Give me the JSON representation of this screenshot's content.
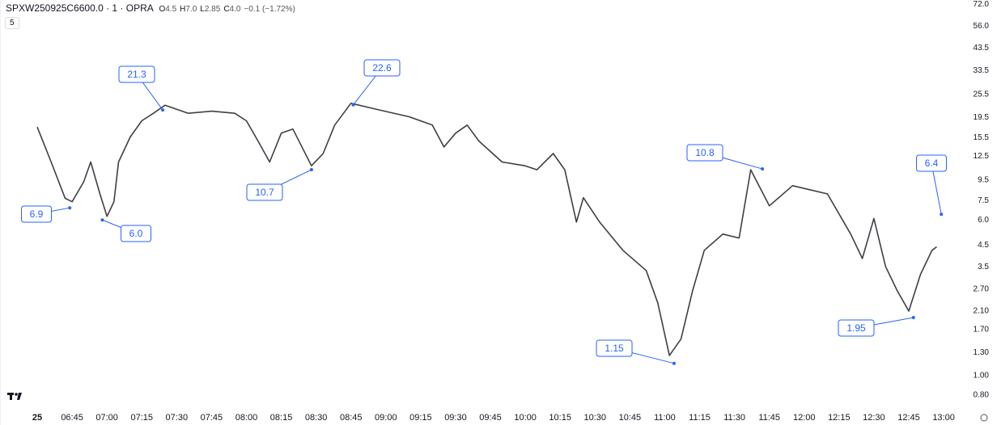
{
  "header": {
    "symbol": "SPXW250925C6600.0 · 1 · OPRA",
    "ohlc": [
      {
        "key": "O",
        "value": "4.5"
      },
      {
        "key": "H",
        "value": "7.0"
      },
      {
        "key": "L",
        "value": "2.85"
      },
      {
        "key": "C",
        "value": "4.0"
      }
    ],
    "change": "−0.1 (−1.72%)",
    "interval_button": "5"
  },
  "chart_data": {
    "type": "line",
    "log_scale": true,
    "ylim": [
      0.72,
      75.6
    ],
    "yticks": [
      {
        "value": 72,
        "label": "72.0"
      },
      {
        "value": 56,
        "label": "56.0"
      },
      {
        "value": 43.5,
        "label": "43.5"
      },
      {
        "value": 33.5,
        "label": "33.5"
      },
      {
        "value": 25.5,
        "label": "25.5"
      },
      {
        "value": 19.5,
        "label": "19.5"
      },
      {
        "value": 15.5,
        "label": "15.5"
      },
      {
        "value": 12.5,
        "label": "12.5"
      },
      {
        "value": 9.5,
        "label": "9.5"
      },
      {
        "value": 7.5,
        "label": "7.5"
      },
      {
        "value": 6,
        "label": "6.0"
      },
      {
        "value": 4.5,
        "label": "4.5"
      },
      {
        "value": 3.5,
        "label": "3.5"
      },
      {
        "value": 2.7,
        "label": "2.70"
      },
      {
        "value": 2.1,
        "label": "2.10"
      },
      {
        "value": 1.7,
        "label": "1.70"
      },
      {
        "value": 1.3,
        "label": "1.30"
      },
      {
        "value": 1,
        "label": "1.00"
      },
      {
        "value": 0.8,
        "label": "0.80"
      }
    ],
    "categories": [
      "25",
      "06:45",
      "07:00",
      "07:15",
      "07:30",
      "07:45",
      "08:00",
      "08:15",
      "08:30",
      "08:45",
      "09:00",
      "09:15",
      "09:30",
      "09:45",
      "10:00",
      "10:15",
      "10:30",
      "10:45",
      "11:00",
      "11:15",
      "11:30",
      "11:45",
      "12:00",
      "12:15",
      "12:30",
      "12:45",
      "13:00"
    ],
    "series": [
      {
        "color": "#3e3f47",
        "x": [
          "06:30",
          "06:36",
          "06:42",
          "06:45",
          "06:50",
          "06:53",
          "06:57",
          "07:00",
          "07:03",
          "07:05",
          "07:10",
          "07:15",
          "07:20",
          "07:25",
          "07:35",
          "07:45",
          "07:55",
          "08:00",
          "08:05",
          "08:10",
          "08:15",
          "08:20",
          "08:28",
          "08:33",
          "08:38",
          "08:45",
          "08:55",
          "09:10",
          "09:20",
          "09:25",
          "09:30",
          "09:35",
          "09:40",
          "09:50",
          "10:00",
          "10:05",
          "10:12",
          "10:17",
          "10:22",
          "10:25",
          "10:32",
          "10:42",
          "10:52",
          "10:57",
          "11:02",
          "11:07",
          "11:12",
          "11:17",
          "11:25",
          "11:32",
          "11:37",
          "11:45",
          "11:55",
          "12:10",
          "12:20",
          "12:25",
          "12:30",
          "12:35",
          "12:40",
          "12:45",
          "12:50",
          "12:55",
          "12:57"
        ],
        "values": [
          17.5,
          11.7,
          7.7,
          7.4,
          9.3,
          11.7,
          8.1,
          6.25,
          7.4,
          11.7,
          15.6,
          18.8,
          20.5,
          22.5,
          20.5,
          21,
          20.5,
          18.8,
          14.9,
          11.7,
          16.3,
          17.1,
          11.2,
          12.9,
          17.9,
          23,
          21.6,
          19.7,
          17.9,
          13.9,
          16.3,
          17.9,
          14.9,
          11.7,
          11.2,
          10.7,
          12.9,
          10.7,
          5.85,
          7.75,
          5.85,
          4.23,
          3.35,
          2.31,
          1.26,
          1.52,
          2.66,
          4.23,
          5.1,
          4.87,
          10.7,
          7.06,
          8.9,
          8.1,
          5.1,
          3.85,
          6.1,
          3.51,
          2.66,
          2.1,
          3.2,
          4.23,
          4.4
        ]
      }
    ],
    "annotations": [
      {
        "x": "06:44",
        "value": 6.9,
        "label": "6.9"
      },
      {
        "x": "06:58",
        "value": 6,
        "label": "6.0"
      },
      {
        "x": "07:24",
        "value": 21.3,
        "label": "21.3"
      },
      {
        "x": "08:28",
        "value": 10.7,
        "label": "10.7"
      },
      {
        "x": "08:46",
        "value": 22.6,
        "label": "22.6"
      },
      {
        "x": "11:04",
        "value": 1.15,
        "label": "1.15"
      },
      {
        "x": "11:42",
        "value": 10.8,
        "label": "10.8"
      },
      {
        "x": "12:47",
        "value": 1.95,
        "label": "1.95"
      },
      {
        "x": "12:59",
        "value": 6.4,
        "label": "6.4"
      }
    ]
  }
}
